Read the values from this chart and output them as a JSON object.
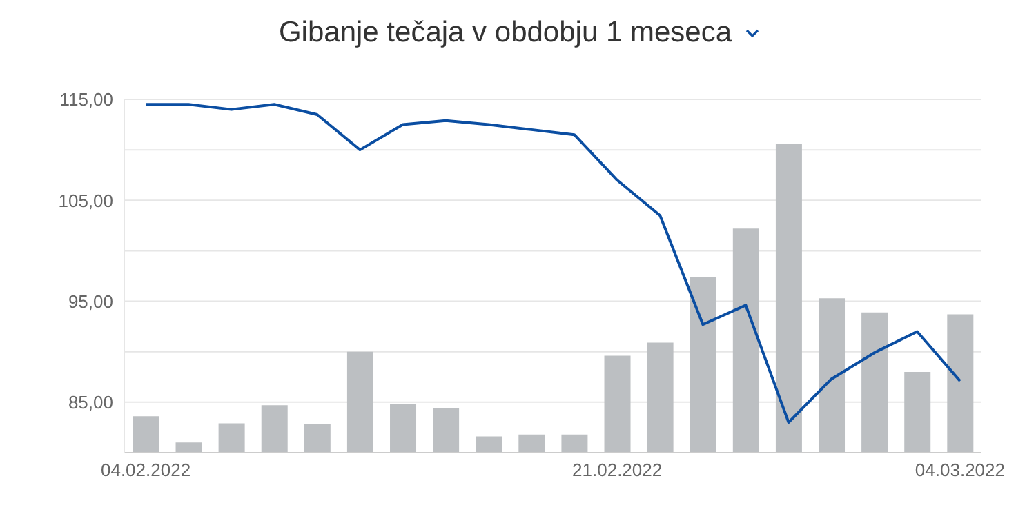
{
  "chart_data": {
    "type": "line",
    "title": "Gibanje tečaja v obdobju 1 meseca",
    "categories": [
      "04.02.2022",
      null,
      null,
      null,
      null,
      null,
      null,
      null,
      null,
      null,
      null,
      "21.02.2022",
      null,
      null,
      null,
      null,
      null,
      null,
      null,
      "04.03.2022"
    ],
    "series": [
      {
        "type": "bar",
        "color": "#bcbfc2",
        "values": [
          83.6,
          81.0,
          82.9,
          84.7,
          82.8,
          90.0,
          84.8,
          84.4,
          81.6,
          81.8,
          81.8,
          89.6,
          90.9,
          97.4,
          102.2,
          110.6,
          95.3,
          93.9,
          88.0,
          93.7
        ]
      },
      {
        "color": "#0b4ea2",
        "values": [
          114.5,
          114.5,
          114.0,
          114.5,
          113.5,
          110.0,
          112.5,
          112.9,
          112.5,
          112.0,
          111.5,
          107.0,
          103.5,
          92.7,
          94.6,
          83.0,
          87.3,
          89.9,
          92.0,
          87.1
        ]
      }
    ],
    "ylim": [
      80,
      115
    ],
    "yticks": [
      {
        "value": 80,
        "label": null
      },
      {
        "value": 85,
        "label": "85,00"
      },
      {
        "value": 90,
        "label": null
      },
      {
        "value": 95,
        "label": "95,00"
      },
      {
        "value": 100,
        "label": null
      },
      {
        "value": 105,
        "label": "105,00"
      },
      {
        "value": 110,
        "label": null
      },
      {
        "value": 115,
        "label": "115,00"
      }
    ],
    "grid": "y",
    "marker": "none",
    "line_style": "solid"
  }
}
